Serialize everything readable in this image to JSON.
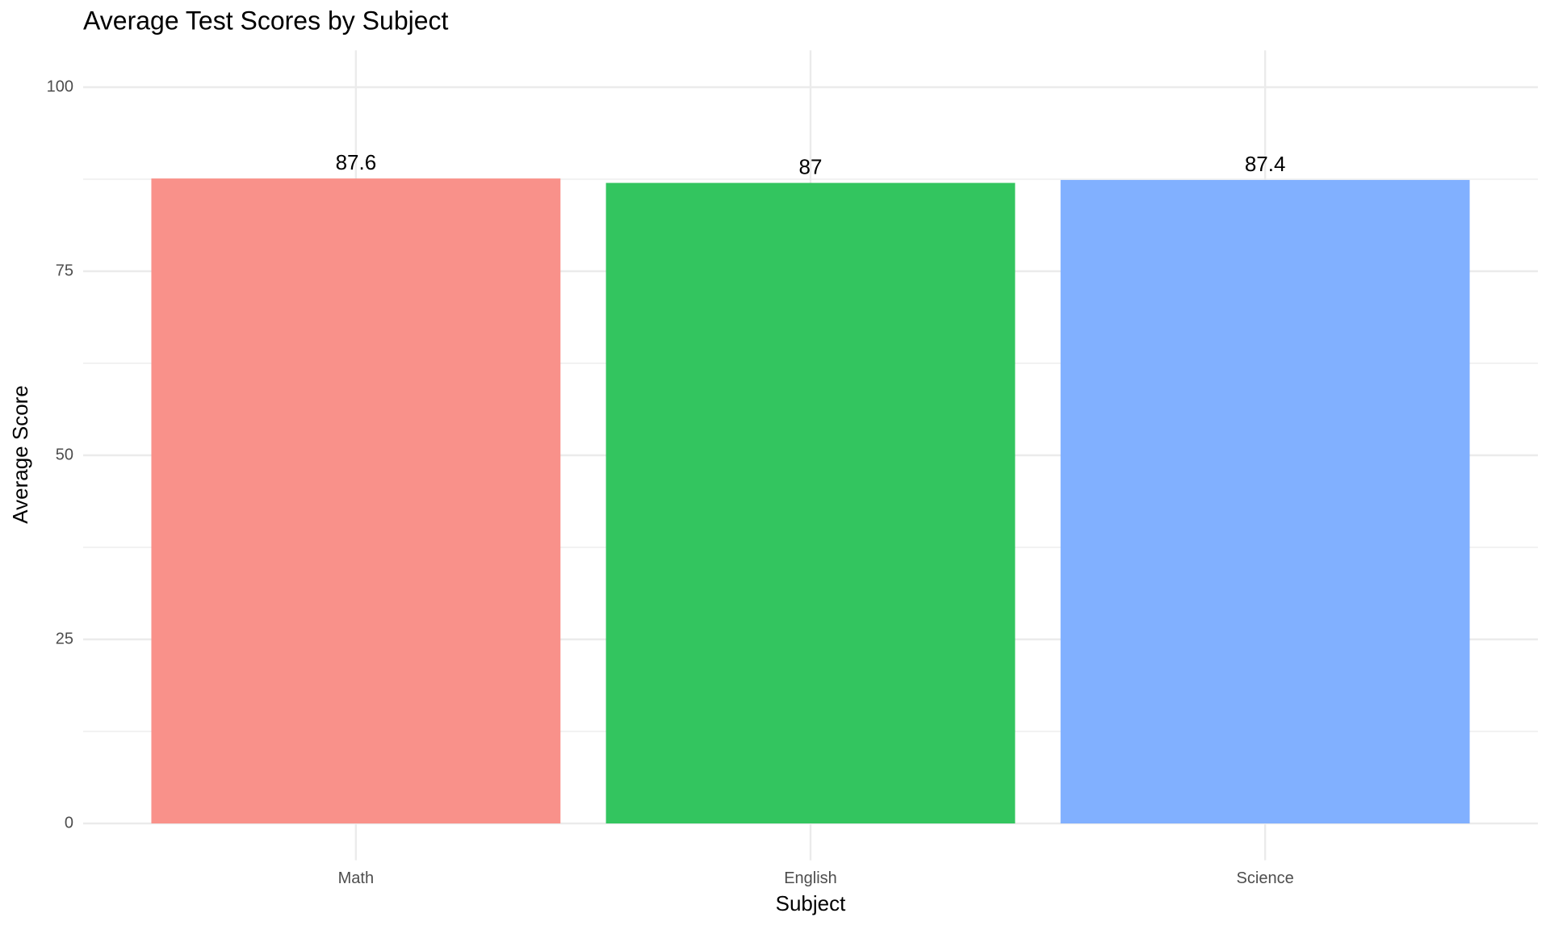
{
  "chart_data": {
    "type": "bar",
    "title": "Average Test Scores by Subject",
    "x_label": "Subject",
    "y_label": "Average Score",
    "categories": [
      "Math",
      "English",
      "Science"
    ],
    "values": [
      87.6,
      87,
      87.4
    ],
    "colors": [
      "#f9918a",
      "#33c55f",
      "#81b0ff"
    ],
    "ylim": [
      -5,
      105
    ],
    "yticks": [
      0,
      25,
      50,
      75,
      100
    ],
    "y_minor_ticks": [
      12.5,
      37.5,
      62.5,
      87.5
    ],
    "grid": true
  }
}
